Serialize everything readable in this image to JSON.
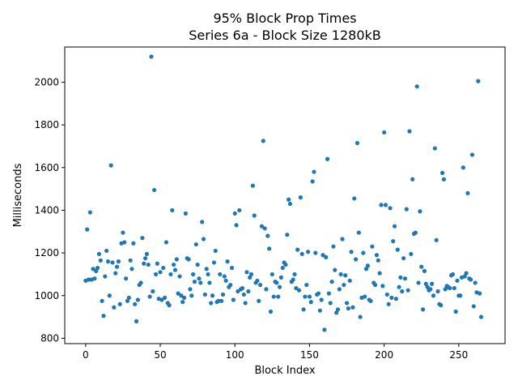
{
  "chart_data": {
    "type": "scatter",
    "title_line1": "95% Block Prop Times",
    "title_line2": "Series 6a - Block Size 1280kB",
    "xlabel": "Block Index",
    "ylabel": "Milliseconds",
    "xlim": [
      -14,
      281
    ],
    "ylim": [
      775,
      2165
    ],
    "x_ticks": [
      0,
      50,
      100,
      150,
      200,
      250
    ],
    "y_ticks": [
      800,
      1000,
      1200,
      1400,
      1600,
      1800,
      2000
    ],
    "grid": false,
    "marker_color": "#1f77b4",
    "series": [
      {
        "points": [
          [
            0,
            1070
          ],
          [
            1,
            1310
          ],
          [
            2,
            1075
          ],
          [
            3,
            1390
          ],
          [
            4,
            1075
          ],
          [
            5,
            1125
          ],
          [
            6,
            1080
          ],
          [
            7,
            1115
          ],
          [
            8,
            1130
          ],
          [
            9,
            1195
          ],
          [
            10,
            1165
          ],
          [
            11,
            975
          ],
          [
            12,
            905
          ],
          [
            13,
            1090
          ],
          [
            14,
            1210
          ],
          [
            15,
            1160
          ],
          [
            16,
            1000
          ],
          [
            17,
            1610
          ],
          [
            18,
            1155
          ],
          [
            19,
            945
          ],
          [
            20,
            1105
          ],
          [
            21,
            1135
          ],
          [
            22,
            1160
          ],
          [
            23,
            960
          ],
          [
            24,
            1245
          ],
          [
            25,
            1295
          ],
          [
            26,
            1250
          ],
          [
            27,
            1080
          ],
          [
            28,
            975
          ],
          [
            29,
            990
          ],
          [
            30,
            1165
          ],
          [
            31,
            1125
          ],
          [
            32,
            1245
          ],
          [
            33,
            960
          ],
          [
            34,
            880
          ],
          [
            35,
            980
          ],
          [
            36,
            1050
          ],
          [
            37,
            1060
          ],
          [
            38,
            1270
          ],
          [
            39,
            1150
          ],
          [
            40,
            1175
          ],
          [
            41,
            1195
          ],
          [
            42,
            1145
          ],
          [
            43,
            995
          ],
          [
            44,
            2120
          ],
          [
            45,
            1020
          ],
          [
            46,
            1495
          ],
          [
            47,
            1100
          ],
          [
            48,
            1150
          ],
          [
            49,
            985
          ],
          [
            50,
            1110
          ],
          [
            51,
            980
          ],
          [
            52,
            1130
          ],
          [
            53,
            990
          ],
          [
            54,
            1250
          ],
          [
            55,
            965
          ],
          [
            56,
            955
          ],
          [
            57,
            1100
          ],
          [
            58,
            1400
          ],
          [
            59,
            1145
          ],
          [
            60,
            1120
          ],
          [
            61,
            1170
          ],
          [
            62,
            1010
          ],
          [
            63,
            1090
          ],
          [
            64,
            1000
          ],
          [
            65,
            970
          ],
          [
            66,
            990
          ],
          [
            67,
            1385
          ],
          [
            68,
            1175
          ],
          [
            69,
            1170
          ],
          [
            70,
            1030
          ],
          [
            71,
            1000
          ],
          [
            72,
            1100
          ],
          [
            73,
            1065
          ],
          [
            74,
            1240
          ],
          [
            75,
            1145
          ],
          [
            76,
            1080
          ],
          [
            77,
            1060
          ],
          [
            78,
            1345
          ],
          [
            79,
            1265
          ],
          [
            80,
            1005
          ],
          [
            81,
            1125
          ],
          [
            82,
            1100
          ],
          [
            83,
            1060
          ],
          [
            84,
            965
          ],
          [
            85,
            1000
          ],
          [
            86,
            1155
          ],
          [
            87,
            1210
          ],
          [
            88,
            970
          ],
          [
            89,
            975
          ],
          [
            90,
            1100
          ],
          [
            91,
            975
          ],
          [
            92,
            1005
          ],
          [
            93,
            1090
          ],
          [
            94,
            1070
          ],
          [
            95,
            1160
          ],
          [
            96,
            1040
          ],
          [
            97,
            1050
          ],
          [
            98,
            1130
          ],
          [
            99,
            980
          ],
          [
            100,
            1385
          ],
          [
            101,
            1330
          ],
          [
            102,
            1020
          ],
          [
            103,
            1400
          ],
          [
            104,
            1030
          ],
          [
            105,
            1035
          ],
          [
            106,
            1005
          ],
          [
            107,
            965
          ],
          [
            108,
            1110
          ],
          [
            109,
            1020
          ],
          [
            110,
            1085
          ],
          [
            111,
            1100
          ],
          [
            112,
            1515
          ],
          [
            113,
            1375
          ],
          [
            114,
            1060
          ],
          [
            115,
            1070
          ],
          [
            116,
            975
          ],
          [
            117,
            1050
          ],
          [
            118,
            1325
          ],
          [
            119,
            1725
          ],
          [
            120,
            1315
          ],
          [
            121,
            1030
          ],
          [
            122,
            1280
          ],
          [
            123,
            1220
          ],
          [
            124,
            925
          ],
          [
            125,
            1100
          ],
          [
            126,
            995
          ],
          [
            127,
            1065
          ],
          [
            128,
            1060
          ],
          [
            129,
            995
          ],
          [
            130,
            1040
          ],
          [
            131,
            1085
          ],
          [
            132,
            1130
          ],
          [
            133,
            1155
          ],
          [
            134,
            1145
          ],
          [
            135,
            1285
          ],
          [
            136,
            1450
          ],
          [
            137,
            1430
          ],
          [
            138,
            1065
          ],
          [
            139,
            1075
          ],
          [
            140,
            1100
          ],
          [
            141,
            1035
          ],
          [
            142,
            1215
          ],
          [
            143,
            1025
          ],
          [
            144,
            1460
          ],
          [
            145,
            1195
          ],
          [
            146,
            935
          ],
          [
            147,
            995
          ],
          [
            148,
            1050
          ],
          [
            149,
            1205
          ],
          [
            150,
            995
          ],
          [
            151,
            970
          ],
          [
            152,
            1535
          ],
          [
            153,
            1580
          ],
          [
            154,
            1200
          ],
          [
            155,
            1005
          ],
          [
            156,
            1010
          ],
          [
            157,
            930
          ],
          [
            158,
            980
          ],
          [
            159,
            1190
          ],
          [
            160,
            840
          ],
          [
            161,
            1180
          ],
          [
            162,
            1640
          ],
          [
            163,
            1010
          ],
          [
            164,
            965
          ],
          [
            165,
            1065
          ],
          [
            166,
            1230
          ],
          [
            167,
            1120
          ],
          [
            168,
            920
          ],
          [
            169,
            935
          ],
          [
            170,
            1030
          ],
          [
            171,
            1100
          ],
          [
            172,
            1265
          ],
          [
            173,
            1050
          ],
          [
            174,
            1095
          ],
          [
            175,
            965
          ],
          [
            176,
            940
          ],
          [
            177,
            1070
          ],
          [
            178,
            1205
          ],
          [
            179,
            945
          ],
          [
            180,
            1455
          ],
          [
            181,
            1170
          ],
          [
            182,
            1715
          ],
          [
            183,
            1295
          ],
          [
            184,
            900
          ],
          [
            185,
            990
          ],
          [
            186,
            1200
          ],
          [
            187,
            995
          ],
          [
            188,
            1125
          ],
          [
            189,
            1140
          ],
          [
            190,
            980
          ],
          [
            191,
            975
          ],
          [
            192,
            1230
          ],
          [
            193,
            1060
          ],
          [
            194,
            1050
          ],
          [
            195,
            1190
          ],
          [
            196,
            1165
          ],
          [
            197,
            1105
          ],
          [
            198,
            1425
          ],
          [
            199,
            1045
          ],
          [
            200,
            1765
          ],
          [
            201,
            1425
          ],
          [
            202,
            1005
          ],
          [
            203,
            960
          ],
          [
            204,
            1410
          ],
          [
            205,
            990
          ],
          [
            206,
            1255
          ],
          [
            207,
            1325
          ],
          [
            208,
            985
          ],
          [
            209,
            1215
          ],
          [
            210,
            1040
          ],
          [
            211,
            1085
          ],
          [
            212,
            1020
          ],
          [
            213,
            1175
          ],
          [
            214,
            1080
          ],
          [
            215,
            1405
          ],
          [
            216,
            1025
          ],
          [
            217,
            1770
          ],
          [
            218,
            1195
          ],
          [
            219,
            1545
          ],
          [
            220,
            1290
          ],
          [
            221,
            1295
          ],
          [
            222,
            1980
          ],
          [
            223,
            1060
          ],
          [
            224,
            1395
          ],
          [
            225,
            1135
          ],
          [
            226,
            935
          ],
          [
            227,
            1115
          ],
          [
            228,
            1055
          ],
          [
            229,
            1040
          ],
          [
            230,
            1025
          ],
          [
            231,
            1030
          ],
          [
            232,
            1055
          ],
          [
            233,
            1000
          ],
          [
            234,
            1690
          ],
          [
            235,
            1260
          ],
          [
            236,
            1020
          ],
          [
            237,
            960
          ],
          [
            238,
            955
          ],
          [
            239,
            1575
          ],
          [
            240,
            1545
          ],
          [
            241,
            1030
          ],
          [
            242,
            1045
          ],
          [
            243,
            1040
          ],
          [
            244,
            1035
          ],
          [
            245,
            1095
          ],
          [
            246,
            1100
          ],
          [
            247,
            1035
          ],
          [
            248,
            925
          ],
          [
            249,
            1070
          ],
          [
            250,
            1000
          ],
          [
            251,
            1000
          ],
          [
            252,
            1085
          ],
          [
            253,
            1600
          ],
          [
            254,
            1090
          ],
          [
            255,
            1105
          ],
          [
            256,
            1480
          ],
          [
            257,
            1080
          ],
          [
            258,
            1075
          ],
          [
            259,
            1660
          ],
          [
            260,
            950
          ],
          [
            261,
            1060
          ],
          [
            262,
            1015
          ],
          [
            263,
            2005
          ],
          [
            264,
            1010
          ],
          [
            265,
            900
          ]
        ]
      }
    ]
  }
}
